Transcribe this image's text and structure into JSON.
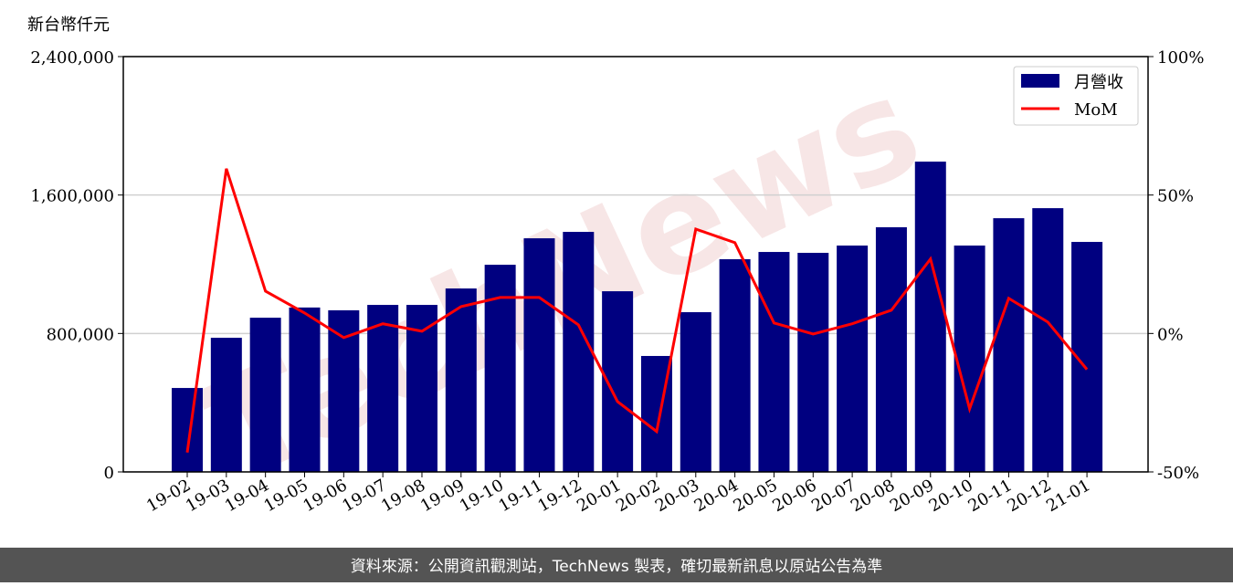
{
  "chart_data": {
    "type": "bar_line",
    "y_label": "新台幣仟元",
    "watermark": "TechNews",
    "footer": "資料來源：公開資訊觀測站，TechNews 製表，確切最新訊息以原站公告為準",
    "categories": [
      "19-02",
      "19-03",
      "19-04",
      "19-05",
      "19-06",
      "19-07",
      "19-08",
      "19-09",
      "19-10",
      "19-11",
      "19-12",
      "20-01",
      "20-02",
      "20-03",
      "20-04",
      "20-05",
      "20-06",
      "20-07",
      "20-08",
      "20-09",
      "20-10",
      "20-11",
      "20-12",
      "21-01"
    ],
    "series": [
      {
        "name": "月營收",
        "color": "#000080",
        "type": "bar",
        "values": [
          485000,
          775000,
          891000,
          950000,
          934000,
          965000,
          965000,
          1060000,
          1197000,
          1350000,
          1387000,
          1044000,
          670000,
          923000,
          1229000,
          1271000,
          1266000,
          1308000,
          1414000,
          1793000,
          1308000,
          1466000,
          1524000,
          1329000
        ]
      },
      {
        "name": "MoM",
        "color": "#ff0000",
        "type": "line",
        "axis": "y2",
        "values": [
          -43,
          59.5,
          15.3,
          7.4,
          -1.5,
          3.5,
          0.8,
          9.7,
          13,
          13,
          3.1,
          -24.6,
          -35.4,
          37.7,
          32.8,
          3.8,
          -0.2,
          3.5,
          8.4,
          26.9,
          -27.2,
          12.7,
          4.1,
          -13
        ]
      }
    ],
    "ylim": [
      0,
      2400000
    ],
    "yticks": [
      0,
      {
        "value": 800000,
        "label": "800,000"
      },
      {
        "value": 1600000,
        "label": "1,600,000"
      },
      {
        "value": 2400000,
        "label": "2,400,000"
      }
    ],
    "y2lim": [
      -50,
      100
    ],
    "y2ticks": [
      {
        "value": -50,
        "label": "-50%"
      },
      {
        "value": 0,
        "label": "0%"
      },
      {
        "value": 50,
        "label": "50%"
      },
      {
        "value": 100,
        "label": "100%"
      }
    ],
    "grid": true,
    "legend": "upper right"
  }
}
